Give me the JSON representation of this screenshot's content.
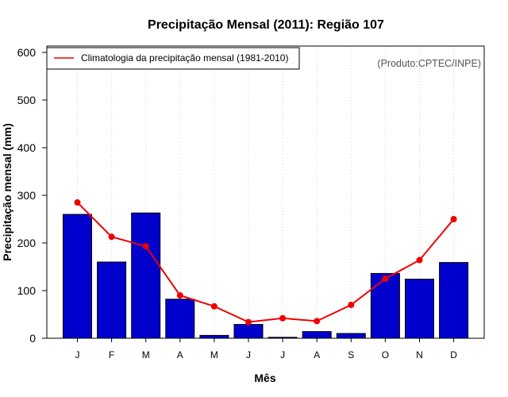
{
  "chart_data": {
    "type": "bar",
    "title": "Precipitação Mensal (2011): Região 107",
    "xlabel": "Mês",
    "ylabel": "Precipitação mensal (mm)",
    "ylim": [
      0,
      600
    ],
    "yticks": [
      "0",
      "100",
      "200",
      "300",
      "400",
      "500",
      "600"
    ],
    "categories": [
      "J",
      "F",
      "M",
      "A",
      "M",
      "J",
      "J",
      "A",
      "S",
      "O",
      "N",
      "D"
    ],
    "series": [
      {
        "name": "Precipitação mensal (2011)",
        "kind": "bar",
        "color": "#0000cd",
        "values": [
          260,
          160,
          263,
          82,
          6,
          29,
          2,
          14,
          10,
          136,
          124,
          159
        ]
      },
      {
        "name": "Climatologia da precipitação mensal (1981-2010)",
        "kind": "line",
        "color": "#ee0000",
        "values": [
          285,
          213,
          193,
          90,
          67,
          34,
          42,
          36,
          70,
          125,
          164,
          250
        ]
      }
    ],
    "grid": "vertical dotted",
    "legend": {
      "position": "top-left",
      "label": "Climatologia da precipitação mensal (1981-2010)"
    },
    "annotation": "(Produto:CPTEC/INPE)"
  }
}
